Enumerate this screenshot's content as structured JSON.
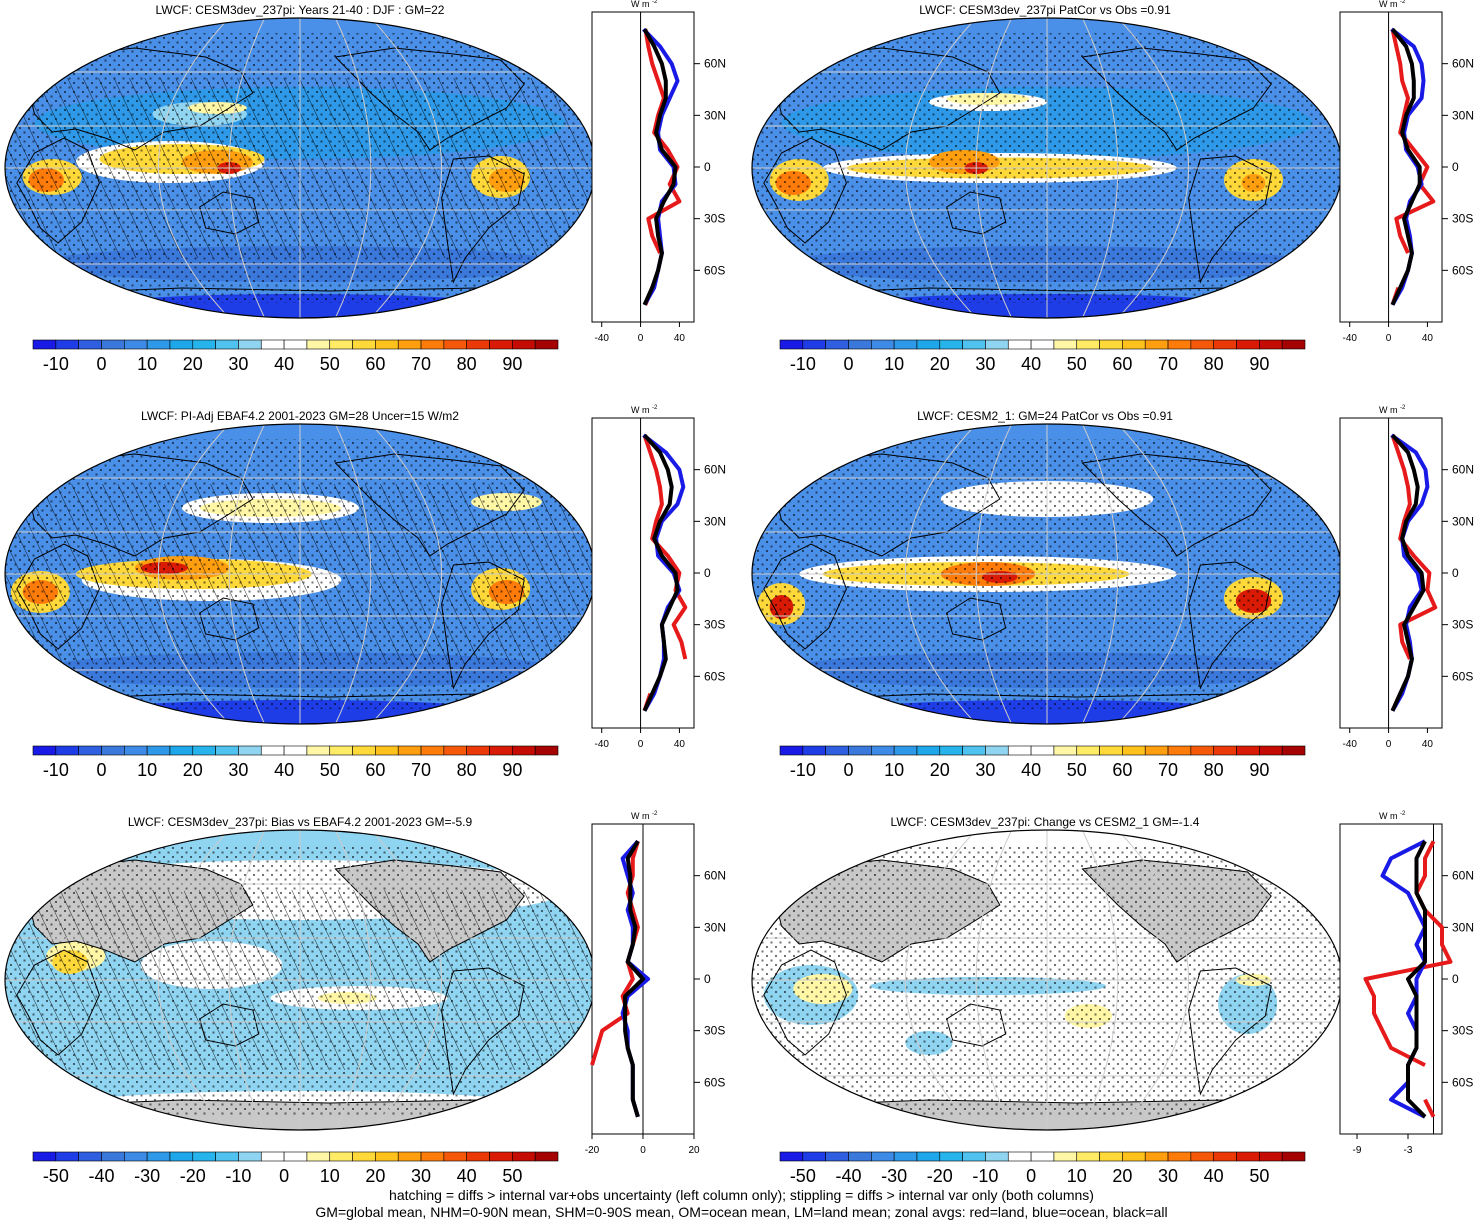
{
  "colors": {
    "land": "#c8c8c8",
    "red": "#e61a1a",
    "blue": "#1a1ae6",
    "black": "#000000",
    "grid": "#cccccc"
  },
  "colorbar_abs": {
    "labels": [
      "-10",
      "0",
      "10",
      "20",
      "30",
      "40",
      "50",
      "60",
      "70",
      "80",
      "90"
    ],
    "colors": [
      "#1a1ae6",
      "#1f3de6",
      "#2d5fe0",
      "#3b78dc",
      "#3d8be6",
      "#2e99e8",
      "#1ea7ea",
      "#27b4ec",
      "#4fc2ef",
      "#8fd4f1",
      "#ffffff",
      "#ffffff",
      "#fff7a6",
      "#ffeb66",
      "#ffd93a",
      "#ffc21c",
      "#ff9f0f",
      "#ff7b0a",
      "#f55808",
      "#ea3806",
      "#d91a04",
      "#c40c04",
      "#a50303"
    ]
  },
  "colorbar_diff": {
    "labels": [
      "-50",
      "-40",
      "-30",
      "-20",
      "-10",
      "0",
      "10",
      "20",
      "30",
      "40",
      "50"
    ],
    "colors": [
      "#1a1ae6",
      "#1f3de6",
      "#2d5fe0",
      "#3b78dc",
      "#3d8be6",
      "#2e99e8",
      "#1ea7ea",
      "#27b4ec",
      "#4fc2ef",
      "#8fd4f1",
      "#ffffff",
      "#ffffff",
      "#fff7a6",
      "#ffeb66",
      "#ffd93a",
      "#ffc21c",
      "#ff9f0f",
      "#ff7b0a",
      "#f55808",
      "#ea3806",
      "#d91a04",
      "#c40c04",
      "#a50303"
    ]
  },
  "zonal_lat_labels": [
    "60N",
    "30N",
    "0",
    "30S",
    "60S"
  ],
  "zonal_unit": "W m",
  "zonal_unit_exp": "-2",
  "panels": [
    {
      "title": "LWCF: CESM3dev_237pi: Years 21-40 : DJF : GM=22",
      "cbar": "abs",
      "xticks": [
        "-40",
        "0",
        "40"
      ],
      "style": "abs1"
    },
    {
      "title": "LWCF: CESM3dev_237pi PatCor vs Obs =0.91",
      "cbar": "abs",
      "xticks": [
        "-40",
        "0",
        "40"
      ],
      "style": "abs2"
    },
    {
      "title": "LWCF: PI-Adj EBAF4.2 2001-2023 GM=28 Uncer=15 W/m2",
      "cbar": "abs",
      "xticks": [
        "-40",
        "0",
        "40"
      ],
      "style": "abs3"
    },
    {
      "title": "LWCF: CESM2_1: GM=24 PatCor vs Obs =0.91",
      "cbar": "abs",
      "xticks": [
        "-40",
        "0",
        "40"
      ],
      "style": "abs4"
    },
    {
      "title": "LWCF: CESM3dev_237pi: Bias vs EBAF4.2 2001-2023 GM=-5.9",
      "cbar": "diff",
      "xticks": [
        "-20",
        "0",
        "20"
      ],
      "style": "diff1"
    },
    {
      "title": "LWCF: CESM3dev_237pi: Change vs CESM2_1 GM=-1.4",
      "cbar": "diff",
      "xticks": [
        "-9",
        "-3"
      ],
      "style": "diff2"
    }
  ],
  "chart_data": [
    {
      "type": "line",
      "title": "LWCF: CESM3dev_237pi: Years 21-40 : DJF : GM=22",
      "xlabel": "W m-2",
      "ylabel": "",
      "y_ticks": [
        "60N",
        "30N",
        "0",
        "30S",
        "60S"
      ],
      "x_ticks": [
        "-40",
        "0",
        "40"
      ],
      "lat": [
        80,
        70,
        60,
        50,
        40,
        30,
        20,
        10,
        0,
        -10,
        -20,
        -30,
        -40,
        -50,
        -60,
        -70,
        -80
      ],
      "series": [
        {
          "name": "land",
          "values": [
            5,
            8,
            12,
            18,
            24,
            18,
            14,
            28,
            38,
            30,
            40,
            8,
            12,
            20,
            null,
            12,
            5
          ]
        },
        {
          "name": "ocean",
          "values": [
            3,
            20,
            32,
            38,
            30,
            22,
            18,
            20,
            34,
            36,
            22,
            18,
            20,
            22,
            18,
            14,
            4
          ]
        },
        {
          "name": "all",
          "values": [
            4,
            14,
            22,
            26,
            26,
            20,
            16,
            22,
            36,
            34,
            24,
            16,
            18,
            22,
            18,
            12,
            4
          ]
        }
      ]
    },
    {
      "type": "line",
      "title": "LWCF: CESM3dev_237pi PatCor vs Obs =0.91",
      "xlabel": "W m-2",
      "ylabel": "",
      "y_ticks": [
        "60N",
        "30N",
        "0",
        "30S",
        "60S"
      ],
      "x_ticks": [
        "-40",
        "0",
        "40"
      ],
      "lat": [
        80,
        70,
        60,
        50,
        40,
        30,
        20,
        10,
        0,
        -10,
        -20,
        -30,
        -40,
        -50,
        -60,
        -70,
        -80
      ],
      "series": [
        {
          "name": "land",
          "values": [
            4,
            8,
            12,
            14,
            20,
            16,
            12,
            26,
            40,
            32,
            46,
            8,
            12,
            20,
            null,
            10,
            4
          ]
        },
        {
          "name": "ocean",
          "values": [
            3,
            26,
            34,
            36,
            34,
            20,
            16,
            18,
            30,
            34,
            22,
            18,
            22,
            24,
            20,
            14,
            4
          ]
        },
        {
          "name": "all",
          "values": [
            4,
            18,
            24,
            26,
            26,
            18,
            14,
            20,
            32,
            32,
            24,
            16,
            20,
            24,
            20,
            12,
            4
          ]
        }
      ]
    },
    {
      "type": "line",
      "title": "LWCF: PI-Adj EBAF4.2 2001-2023 GM=28 Uncer=15 W/m2",
      "xlabel": "W m-2",
      "ylabel": "",
      "y_ticks": [
        "60N",
        "30N",
        "0",
        "30S",
        "60S"
      ],
      "x_ticks": [
        "-40",
        "0",
        "40"
      ],
      "lat": [
        80,
        70,
        60,
        50,
        40,
        30,
        20,
        10,
        0,
        -10,
        -20,
        -30,
        -40,
        -50,
        -60,
        -70,
        -80
      ],
      "series": [
        {
          "name": "land",
          "values": [
            4,
            10,
            16,
            20,
            22,
            16,
            12,
            28,
            40,
            36,
            46,
            34,
            42,
            46,
            null,
            10,
            4
          ]
        },
        {
          "name": "ocean",
          "values": [
            3,
            26,
            40,
            44,
            38,
            22,
            16,
            18,
            34,
            40,
            28,
            22,
            24,
            24,
            20,
            14,
            4
          ]
        },
        {
          "name": "all",
          "values": [
            4,
            20,
            28,
            32,
            30,
            20,
            14,
            22,
            36,
            38,
            30,
            22,
            24,
            26,
            20,
            12,
            4
          ]
        }
      ]
    },
    {
      "type": "line",
      "title": "LWCF: CESM2_1: GM=24 PatCor vs Obs =0.91",
      "xlabel": "W m-2",
      "ylabel": "",
      "y_ticks": [
        "60N",
        "30N",
        "0",
        "30S",
        "60S"
      ],
      "x_ticks": [
        "-40",
        "0",
        "40"
      ],
      "lat": [
        80,
        70,
        60,
        50,
        40,
        30,
        20,
        10,
        0,
        -10,
        -20,
        -30,
        -40,
        -50,
        -60,
        -70,
        -80
      ],
      "series": [
        {
          "name": "land",
          "values": [
            4,
            10,
            16,
            20,
            22,
            16,
            12,
            26,
            42,
            40,
            48,
            12,
            14,
            22,
            null,
            12,
            4
          ]
        },
        {
          "name": "ocean",
          "values": [
            3,
            28,
            38,
            40,
            34,
            20,
            14,
            16,
            30,
            34,
            22,
            18,
            22,
            24,
            20,
            14,
            4
          ]
        },
        {
          "name": "all",
          "values": [
            4,
            20,
            26,
            30,
            28,
            18,
            14,
            20,
            34,
            36,
            26,
            16,
            20,
            24,
            20,
            12,
            4
          ]
        }
      ]
    },
    {
      "type": "line",
      "title": "LWCF: CESM3dev_237pi: Bias vs EBAF4.2 2001-2023 GM=-5.9",
      "xlabel": "W m-2",
      "ylabel": "",
      "y_ticks": [
        "60N",
        "30N",
        "0",
        "30S",
        "60S"
      ],
      "x_ticks": [
        "-20",
        "0",
        "20"
      ],
      "lat": [
        80,
        70,
        60,
        50,
        40,
        30,
        20,
        10,
        0,
        -10,
        -20,
        -30,
        -40,
        -50,
        -60,
        -70,
        -80
      ],
      "series": [
        {
          "name": "land",
          "values": [
            -2,
            -4,
            -4,
            -6,
            -4,
            -2,
            -4,
            -6,
            -4,
            -8,
            -6,
            -16,
            -18,
            -20,
            null,
            -4,
            -2
          ]
        },
        {
          "name": "ocean",
          "values": [
            -2,
            -8,
            -6,
            -4,
            -6,
            -4,
            -4,
            -6,
            2,
            -6,
            -8,
            -6,
            -6,
            -4,
            -4,
            -4,
            -2
          ]
        },
        {
          "name": "all",
          "values": [
            -2,
            -6,
            -5,
            -5,
            -5,
            -3,
            -4,
            -6,
            0,
            -7,
            -7,
            -7,
            -6,
            -4,
            -4,
            -4,
            -2
          ]
        }
      ]
    },
    {
      "type": "line",
      "title": "LWCF: CESM3dev_237pi: Change vs CESM2_1 GM=-1.4",
      "xlabel": "W m-2",
      "ylabel": "",
      "y_ticks": [
        "60N",
        "30N",
        "0",
        "30S",
        "60S"
      ],
      "x_ticks": [
        "-9",
        "-3"
      ],
      "lat": [
        80,
        70,
        60,
        50,
        40,
        30,
        20,
        10,
        0,
        -10,
        -20,
        -30,
        -40,
        -50,
        -60,
        -70,
        -80
      ],
      "series": [
        {
          "name": "land",
          "values": [
            0,
            -1,
            -1,
            -2,
            -1,
            1,
            1,
            2,
            -8,
            -7,
            -7,
            -6,
            -5,
            -1,
            null,
            -1,
            0
          ]
        },
        {
          "name": "ocean",
          "values": [
            -1,
            -5,
            -6,
            -3,
            -2,
            -1,
            -2,
            -1,
            -2,
            -2,
            -3,
            -2,
            -2,
            -3,
            -3,
            -5,
            -1
          ]
        },
        {
          "name": "all",
          "values": [
            -1,
            -2,
            -2,
            -2,
            -1,
            -1,
            -1,
            -1,
            -3,
            -2,
            -2,
            -2,
            -2,
            -3,
            -3,
            -3,
            -1
          ]
        }
      ]
    }
  ],
  "footer": {
    "line1": "hatching = diffs > internal var+obs uncertainty (left column only); stippling = diffs > internal var only (both columns)",
    "line2": "GM=global mean, NHM=0-90N mean, SHM=0-90S mean, OM=ocean mean, LM=land mean; zonal avgs: red=land, blue=ocean, black=all"
  }
}
